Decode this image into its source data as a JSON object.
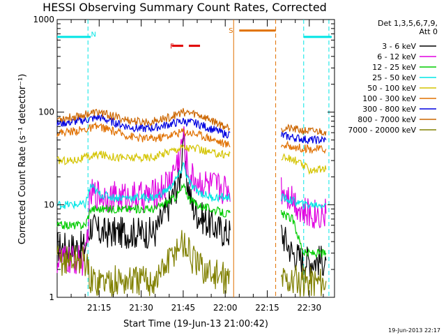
{
  "chart_data": {
    "type": "line",
    "title": "HESSI Observing Summary Count Rates, Corrected",
    "xlabel": "Start Time (19-Jun-13 21:00:42)",
    "ylabel": "Corrected Count Rate (s⁻¹ detector⁻¹)",
    "yscale": "log",
    "ylim": [
      1,
      1000
    ],
    "xlim_minutes": [
      0,
      99
    ],
    "x_ticks": [
      {
        "label": "21:15",
        "value": 15
      },
      {
        "label": "21:30",
        "value": 30
      },
      {
        "label": "21:45",
        "value": 45
      },
      {
        "label": "22:00",
        "value": 60
      },
      {
        "label": "22:15",
        "value": 75
      },
      {
        "label": "22:30",
        "value": 90
      }
    ],
    "y_ticks": [
      {
        "label": "1",
        "value": 1
      },
      {
        "label": "10",
        "value": 10
      },
      {
        "label": "100",
        "value": 100
      },
      {
        "label": "1000",
        "value": 1000
      }
    ],
    "legend_header": [
      "Det 1,3,5,6,7,9,",
      "Att 0"
    ],
    "footer_timestamp": "19-Jun-2013 22:17",
    "annotations": [
      {
        "label": "N",
        "color": "#00e5e5",
        "x": 13,
        "y": 700
      },
      {
        "label": "S",
        "color": "#e07000",
        "x": 62,
        "y": 770
      },
      {
        "label": "F",
        "color": "#e00000",
        "x": 41,
        "y": 520
      }
    ],
    "bars": [
      {
        "name": "night",
        "color": "#00e5e5",
        "ranges": [
          [
            0,
            12
          ],
          [
            88,
            98
          ]
        ],
        "y": 650
      },
      {
        "name": "saa",
        "color": "#e07000",
        "ranges": [
          [
            65,
            78
          ]
        ],
        "y": 760
      },
      {
        "name": "flare",
        "color": "#e00000",
        "ranges": [
          [
            41,
            45
          ],
          [
            47,
            51
          ]
        ],
        "y": 520
      }
    ],
    "vlines": [
      {
        "x": 11,
        "color": "#00e5e5",
        "style": "dashed"
      },
      {
        "x": 63,
        "color": "#e07000",
        "style": "solid"
      },
      {
        "x": 78,
        "color": "#e07000",
        "style": "dashed"
      },
      {
        "x": 88,
        "color": "#00e5e5",
        "style": "dashed"
      },
      {
        "x": 97,
        "color": "#00e5e5",
        "style": "dashed"
      }
    ],
    "gap": [
      62,
      79
    ],
    "series": [
      {
        "name": "3 - 6 keV",
        "color": "#000000",
        "x": [
          0,
          5,
          10,
          12,
          15,
          20,
          25,
          30,
          35,
          40,
          42,
          44,
          45,
          46,
          47,
          48,
          50,
          55,
          60,
          62,
          80,
          84,
          88,
          92,
          96
        ],
        "y": [
          3.5,
          3.5,
          3.5,
          6,
          5,
          5,
          5,
          5,
          5,
          10,
          14,
          20,
          60,
          20,
          15,
          10,
          8,
          6,
          5,
          5,
          5,
          3,
          2.5,
          2.5,
          2.5
        ]
      },
      {
        "name": "6 - 12 keV",
        "color": "#e000e0",
        "x": [
          0,
          5,
          10,
          12,
          15,
          20,
          25,
          30,
          35,
          40,
          42,
          44,
          45,
          46,
          47,
          48,
          50,
          55,
          60,
          62,
          80,
          84,
          88,
          92,
          96
        ],
        "y": [
          2.5,
          2.5,
          2.5,
          13,
          13,
          12,
          12,
          12,
          13,
          18,
          25,
          35,
          60,
          30,
          22,
          20,
          18,
          16,
          15,
          15,
          15,
          12,
          8,
          8,
          8
        ]
      },
      {
        "name": "12 - 25 keV",
        "color": "#00cc00",
        "x": [
          0,
          5,
          10,
          12,
          15,
          20,
          25,
          30,
          35,
          40,
          42,
          44,
          45,
          46,
          47,
          48,
          50,
          55,
          60,
          62,
          80,
          84,
          88,
          92,
          96
        ],
        "y": [
          6,
          6,
          6,
          9,
          9,
          9,
          9,
          9,
          9,
          11,
          12,
          14,
          16,
          14,
          12,
          11,
          10,
          9,
          8,
          8,
          8,
          7,
          3,
          3,
          3
        ]
      },
      {
        "name": "25 - 50 keV",
        "color": "#00e5e5",
        "x": [
          0,
          5,
          10,
          12,
          15,
          20,
          25,
          30,
          35,
          40,
          42,
          44,
          45,
          46,
          47,
          48,
          50,
          55,
          60,
          62,
          80,
          84,
          88,
          92,
          96
        ],
        "y": [
          10,
          10,
          10,
          16,
          13,
          12,
          12,
          12,
          12,
          15,
          18,
          22,
          28,
          22,
          18,
          16,
          14,
          12,
          12,
          12,
          12,
          11,
          10,
          10,
          10
        ]
      },
      {
        "name": "50 - 100 keV",
        "color": "#d4c400",
        "x": [
          0,
          5,
          10,
          15,
          20,
          25,
          30,
          35,
          40,
          45,
          50,
          55,
          60,
          62,
          80,
          85,
          90,
          96
        ],
        "y": [
          30,
          30,
          32,
          35,
          33,
          32,
          32,
          33,
          38,
          42,
          40,
          36,
          35,
          35,
          33,
          30,
          24,
          24
        ]
      },
      {
        "name": "100 - 300 keV",
        "color": "#e07000",
        "x": [
          0,
          5,
          10,
          15,
          20,
          25,
          30,
          35,
          40,
          45,
          50,
          55,
          60,
          62,
          80,
          85,
          90,
          96
        ],
        "y": [
          60,
          62,
          65,
          70,
          62,
          56,
          52,
          52,
          56,
          62,
          58,
          52,
          45,
          45,
          44,
          42,
          40,
          40
        ]
      },
      {
        "name": "300 - 800 keV",
        "color": "#0000e0",
        "x": [
          0,
          5,
          10,
          15,
          20,
          25,
          30,
          35,
          40,
          45,
          50,
          55,
          60,
          62,
          80,
          85,
          90,
          96
        ],
        "y": [
          75,
          78,
          82,
          88,
          78,
          70,
          66,
          68,
          74,
          80,
          75,
          66,
          58,
          58,
          56,
          53,
          50,
          50
        ]
      },
      {
        "name": "800 - 7000 keV",
        "color": "#cc6600",
        "x": [
          0,
          5,
          10,
          15,
          20,
          25,
          30,
          35,
          40,
          45,
          50,
          55,
          60,
          62,
          80,
          85,
          90,
          96
        ],
        "y": [
          85,
          88,
          95,
          100,
          90,
          82,
          78,
          80,
          88,
          100,
          95,
          82,
          70,
          70,
          68,
          65,
          62,
          62
        ]
      },
      {
        "name": "7000 - 20000 keV",
        "color": "#808000",
        "x": [
          0,
          5,
          10,
          12,
          15,
          20,
          25,
          30,
          35,
          40,
          42,
          44,
          45,
          46,
          47,
          48,
          50,
          55,
          60,
          62,
          80,
          84,
          88,
          92,
          96
        ],
        "y": [
          2.5,
          2.5,
          2.5,
          1.5,
          1.5,
          1.5,
          1.5,
          1.5,
          1.5,
          2.5,
          3.2,
          3.8,
          3.8,
          3.5,
          3.2,
          2.6,
          2.2,
          1.8,
          1.6,
          1.6,
          1.6,
          1.5,
          1.5,
          1.5,
          1.5
        ]
      }
    ]
  }
}
